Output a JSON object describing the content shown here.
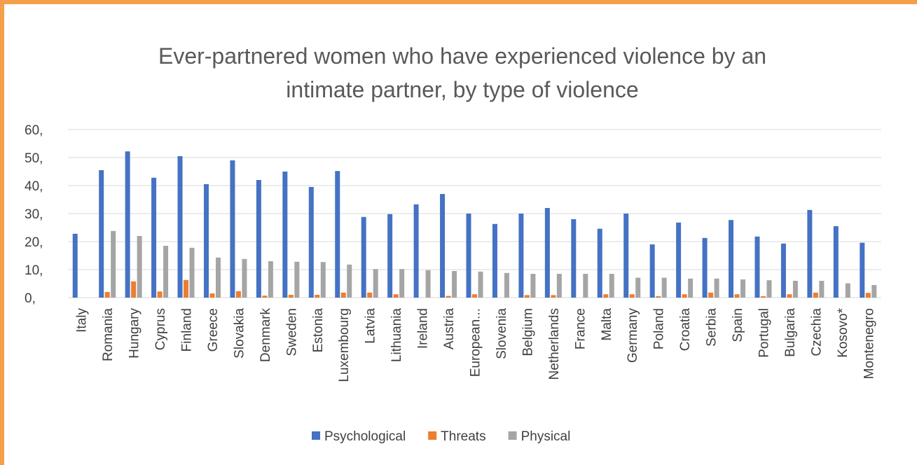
{
  "chart_data": {
    "type": "bar",
    "title": "Ever-partnered women who have experienced violence by an intimate partner, by type of violence",
    "categories": [
      "Italy",
      "Romania",
      "Hungary",
      "Cyprus",
      "Finland",
      "Greece",
      "Slovakia",
      "Denmark",
      "Sweden",
      "Estonia",
      "Luxembourg",
      "Latvia",
      "Lithuania",
      "Ireland",
      "Austria",
      "European...",
      "Slovenia",
      "Belgium",
      "Netherlands",
      "France",
      "Malta",
      "Germany",
      "Poland",
      "Croatia",
      "Serbia",
      "Spain",
      "Portugal",
      "Bulgaria",
      "Czechia",
      "Kosovo*",
      "Montenegro"
    ],
    "series": [
      {
        "name": "Psychological",
        "color": "#4472c4",
        "values": [
          22.8,
          45.5,
          52.2,
          42.8,
          50.5,
          40.5,
          49,
          42,
          45,
          39.5,
          45.2,
          28.8,
          29.8,
          33.3,
          37,
          30,
          26.3,
          30,
          32,
          28,
          24.6,
          30,
          19,
          26.8,
          21.3,
          27.7,
          21.8,
          19.3,
          31.3,
          25.5,
          19.6
        ]
      },
      {
        "name": "Threats",
        "color": "#ed7d31",
        "values": [
          0,
          2,
          5.8,
          2.2,
          6.3,
          1.5,
          2.3,
          0.7,
          1,
          1,
          1.8,
          1.8,
          1.2,
          0,
          0.6,
          1.2,
          0,
          0.9,
          0.9,
          0,
          1.2,
          1.2,
          0.5,
          1.2,
          1.8,
          1.2,
          0.5,
          1.2,
          1.8,
          0,
          1.7
        ]
      },
      {
        "name": "Physical",
        "color": "#a5a5a5",
        "values": [
          0,
          23.8,
          22,
          18.5,
          17.8,
          14.3,
          13.8,
          13,
          12.8,
          12.7,
          11.8,
          10.2,
          10.2,
          9.8,
          9.5,
          9.3,
          8.8,
          8.5,
          8.5,
          8.5,
          8.5,
          7.1,
          7.1,
          6.8,
          6.8,
          6.5,
          6.2,
          6,
          6,
          5.1,
          4.5
        ]
      }
    ],
    "ylim": [
      0,
      60
    ],
    "yticks": [
      {
        "value": 0,
        "label": "0,"
      },
      {
        "value": 10,
        "label": "10,"
      },
      {
        "value": 20,
        "label": "20,"
      },
      {
        "value": 30,
        "label": "30,"
      },
      {
        "value": 40,
        "label": "40,"
      },
      {
        "value": 50,
        "label": "50,"
      },
      {
        "value": 60,
        "label": "60,"
      }
    ],
    "grid": true,
    "legend": "bottom"
  }
}
